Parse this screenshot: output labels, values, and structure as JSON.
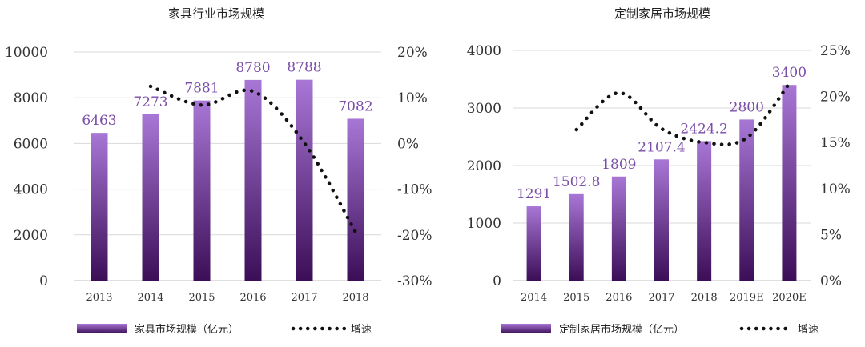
{
  "chart_data": [
    {
      "type": "bar",
      "title": "家具行业市场规模",
      "categories": [
        "2013",
        "2014",
        "2015",
        "2016",
        "2017",
        "2018"
      ],
      "series": [
        {
          "name": "家具市场规模（亿元）",
          "type": "bar",
          "axis": "left",
          "values": [
            6463,
            7273,
            7881,
            8780,
            8788,
            7082
          ]
        },
        {
          "name": "增速",
          "type": "line",
          "axis": "right",
          "style": "dotted",
          "values": [
            null,
            12.5,
            8.4,
            11.4,
            0.1,
            -19.4
          ]
        }
      ],
      "ylim_left": [
        0,
        10000
      ],
      "yticks_left": [
        "0",
        "2000",
        "4000",
        "6000",
        "8000",
        "10000"
      ],
      "ylim_right": [
        -30,
        20
      ],
      "yticks_right": [
        "-30%",
        "-20%",
        "-10%",
        "0%",
        "10%",
        "20%"
      ],
      "data_labels": [
        "6463",
        "7273",
        "7881",
        "8780",
        "8788",
        "7082"
      ],
      "legend_position": "bottom",
      "grid": true
    },
    {
      "type": "bar",
      "title": "定制家居市场规模",
      "categories": [
        "2014",
        "2015",
        "2016",
        "2017",
        "2018",
        "2019E",
        "2020E"
      ],
      "series": [
        {
          "name": "定制家居市场规模（亿元）",
          "type": "bar",
          "axis": "left",
          "values": [
            1291,
            1502.8,
            1809,
            2107.4,
            2424.2,
            2800,
            3400
          ]
        },
        {
          "name": "增速",
          "type": "line",
          "axis": "right",
          "style": "dotted",
          "values": [
            null,
            16.4,
            20.4,
            16.5,
            15.0,
            15.5,
            21.4
          ]
        }
      ],
      "ylim_left": [
        0,
        4000
      ],
      "yticks_left": [
        "0",
        "1000",
        "2000",
        "3000",
        "4000"
      ],
      "ylim_right": [
        0,
        25
      ],
      "yticks_right": [
        "0%",
        "5%",
        "10%",
        "15%",
        "20%",
        "25%"
      ],
      "data_labels": [
        "1291",
        "1502.8",
        "1809",
        "2107.4",
        "2424.2",
        "2800",
        "3400"
      ],
      "legend_position": "bottom",
      "grid": true
    }
  ],
  "colors": {
    "bar_top": "#a877d6",
    "bar_bottom": "#3c0e57",
    "line": "#111111",
    "label": "#7a4fa8",
    "grid": "#d9d9d9"
  }
}
